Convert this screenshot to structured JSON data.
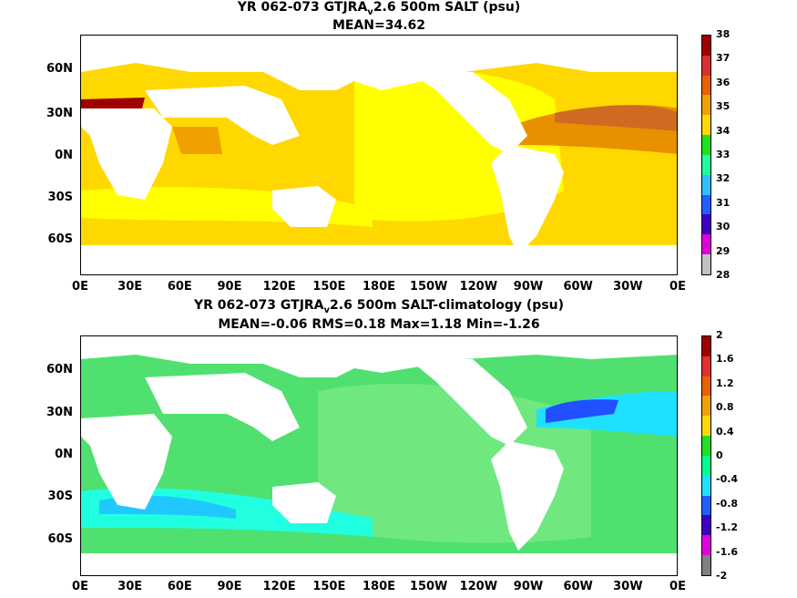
{
  "panel_top": {
    "title_line1": "YR 062-073 GTJRA",
    "title_sub": "v",
    "title_line1_rest": "2.6 500m SALT (psu)",
    "title_line2": "MEAN=34.62",
    "colorbar_labels": [
      "38",
      "37",
      "36",
      "35",
      "34",
      "33",
      "32",
      "31",
      "30",
      "29",
      "28"
    ],
    "colorbar_colors": [
      "#a00000",
      "#d83030",
      "#e86000",
      "#f0a000",
      "#ffd800",
      "#20e020",
      "#20ffa0",
      "#30c0ff",
      "#2060ff",
      "#4000c0",
      "#e000e0",
      "#c0c0c0"
    ]
  },
  "panel_bottom": {
    "title_line1": "YR 062-073 GTJRA",
    "title_sub": "v",
    "title_line1_rest": "2.6 500m SALT-climatology (psu)",
    "title_line2": "MEAN=-0.06   RMS=0.18   Max=1.18   Min=-1.26",
    "colorbar_labels": [
      "2",
      "1.6",
      "1.2",
      "0.8",
      "0.4",
      "0",
      "-0.4",
      "-0.8",
      "-1.2",
      "-1.6",
      "-2"
    ],
    "colorbar_colors": [
      "#a00000",
      "#e03030",
      "#e86000",
      "#f0a000",
      "#ffd800",
      "#20e020",
      "#00ff90",
      "#20e0ff",
      "#2060ff",
      "#4000c0",
      "#e000e0",
      "#808080"
    ]
  },
  "y_axis_labels": [
    "60N",
    "30N",
    "0N",
    "30S",
    "60S"
  ],
  "x_axis_labels": [
    "0E",
    "30E",
    "60E",
    "90E",
    "120E",
    "150E",
    "180E",
    "150W",
    "120W",
    "90W",
    "60W",
    "30W",
    "0E"
  ]
}
